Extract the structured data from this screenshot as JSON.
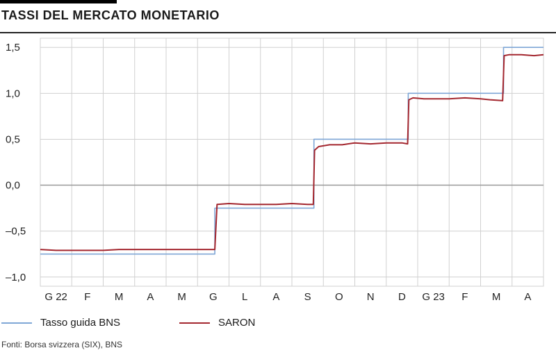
{
  "title": "TASSI DEL MERCATO MONETARIO",
  "source": "Fonti: Borsa svizzera (SIX), BNS",
  "colors": {
    "bns": "#7ea6d6",
    "saron": "#a3262e",
    "grid": "#d0d0d0",
    "zero": "#999999"
  },
  "chart_data": {
    "type": "line",
    "title": "TASSI DEL MERCATO MONETARIO",
    "xlabel": "",
    "ylabel": "",
    "ylim": [
      -1.1,
      1.6
    ],
    "yticks": [
      -1.0,
      -0.5,
      0.0,
      0.5,
      1.0,
      1.5
    ],
    "ytick_labels": [
      "–1,0",
      "–0,5",
      "0,0",
      "0,5",
      "1,0",
      "1,5"
    ],
    "xlim": [
      0,
      16
    ],
    "month_labels": [
      "G 22",
      "F",
      "M",
      "A",
      "M",
      "G",
      "L",
      "A",
      "S",
      "O",
      "N",
      "D",
      "G 23",
      "F",
      "M",
      "A"
    ],
    "grid": true,
    "legend_position": "bottom",
    "series": [
      {
        "name": "Tasso guida BNS",
        "x": [
          0,
          5.55,
          5.55,
          8.7,
          8.7,
          11.7,
          11.7,
          14.73,
          14.73,
          16
        ],
        "y": [
          -0.75,
          -0.75,
          -0.25,
          -0.25,
          0.5,
          0.5,
          1.0,
          1.0,
          1.5,
          1.5
        ]
      },
      {
        "name": "SARON",
        "x": [
          0,
          0.5,
          1.0,
          1.5,
          2.0,
          2.5,
          3.0,
          3.5,
          4.0,
          4.5,
          5.0,
          5.4,
          5.55,
          5.62,
          6.0,
          6.5,
          7.0,
          7.5,
          8.0,
          8.5,
          8.68,
          8.72,
          8.85,
          9.2,
          9.6,
          10.0,
          10.5,
          11.0,
          11.5,
          11.68,
          11.72,
          11.85,
          12.2,
          12.6,
          13.0,
          13.5,
          14.0,
          14.3,
          14.7,
          14.75,
          14.9,
          15.3,
          15.7,
          16.0
        ],
        "y": [
          -0.7,
          -0.71,
          -0.71,
          -0.71,
          -0.71,
          -0.7,
          -0.7,
          -0.7,
          -0.7,
          -0.7,
          -0.7,
          -0.7,
          -0.7,
          -0.21,
          -0.2,
          -0.21,
          -0.21,
          -0.21,
          -0.2,
          -0.21,
          -0.21,
          0.38,
          0.42,
          0.44,
          0.44,
          0.46,
          0.45,
          0.46,
          0.46,
          0.45,
          0.93,
          0.95,
          0.94,
          0.94,
          0.94,
          0.95,
          0.94,
          0.93,
          0.92,
          1.41,
          1.42,
          1.42,
          1.41,
          1.42
        ]
      }
    ]
  },
  "legend": [
    {
      "label": "Tasso guida BNS",
      "color": "#7ea6d6"
    },
    {
      "label": "SARON",
      "color": "#a3262e"
    }
  ]
}
